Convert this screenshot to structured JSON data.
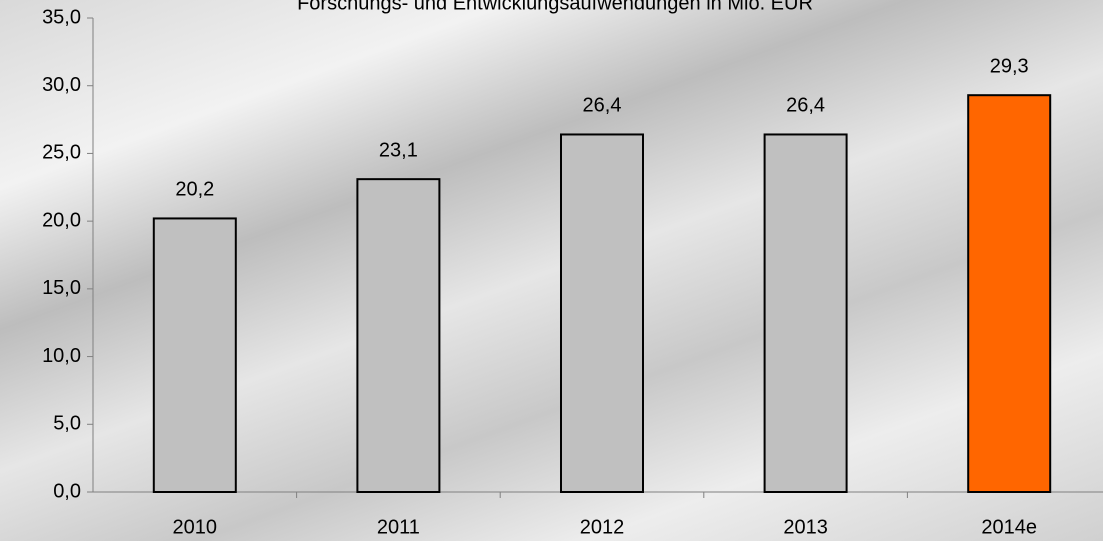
{
  "chart_data": {
    "type": "bar",
    "title": "Forschungs- und Entwicklungsaufwendungen in Mio. EUR",
    "categories": [
      "2010",
      "2011",
      "2012",
      "2013",
      "2014e"
    ],
    "values": [
      20.2,
      23.1,
      26.4,
      26.4,
      29.3
    ],
    "value_labels": [
      "20,2",
      "23,1",
      "26,4",
      "26,4",
      "29,3"
    ],
    "colors": [
      "#c0c0c0",
      "#c0c0c0",
      "#c0c0c0",
      "#c0c0c0",
      "#ff6600"
    ],
    "ylim": [
      0,
      35
    ],
    "yticks": [
      {
        "value": 0,
        "label": "0,0"
      },
      {
        "value": 5,
        "label": "5,0"
      },
      {
        "value": 10,
        "label": "10,0"
      },
      {
        "value": 15,
        "label": "15,0"
      },
      {
        "value": 20,
        "label": "20,0"
      },
      {
        "value": 25,
        "label": "25,0"
      },
      {
        "value": 30,
        "label": "30,0"
      },
      {
        "value": 35,
        "label": "35,0"
      }
    ],
    "grid": false
  }
}
